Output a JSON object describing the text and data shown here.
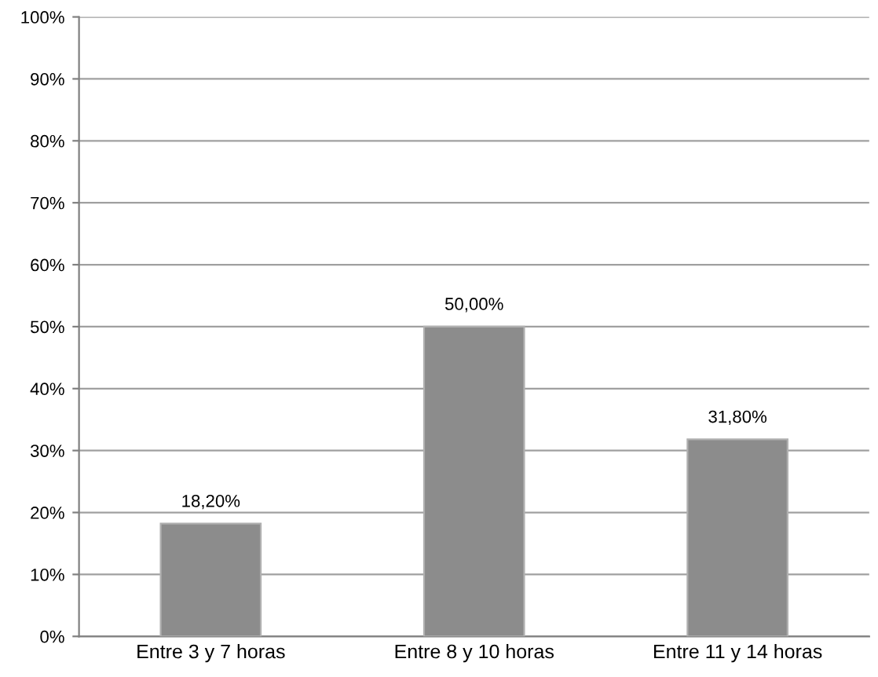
{
  "chart_data": {
    "type": "bar",
    "categories": [
      "Entre 3 y 7 horas",
      "Entre 8 y 10 horas",
      "Entre 11 y 14 horas"
    ],
    "values": [
      18.2,
      50.0,
      31.8
    ],
    "color": "#8c8c8c",
    "value_labels": [
      "18,20%",
      "50,00%",
      "31,80%"
    ],
    "ylim": [
      0,
      100
    ],
    "yticks": [
      {
        "value": 0,
        "label": "0%"
      },
      {
        "value": 10,
        "label": "10%"
      },
      {
        "value": 20,
        "label": "20%"
      },
      {
        "value": 30,
        "label": "30%"
      },
      {
        "value": 40,
        "label": "40%"
      },
      {
        "value": 50,
        "label": "50%"
      },
      {
        "value": 60,
        "label": "60%"
      },
      {
        "value": 70,
        "label": "70%"
      },
      {
        "value": 80,
        "label": "80%"
      },
      {
        "value": 90,
        "label": "90%"
      },
      {
        "value": 100,
        "label": "100%"
      }
    ],
    "grid": "y"
  }
}
